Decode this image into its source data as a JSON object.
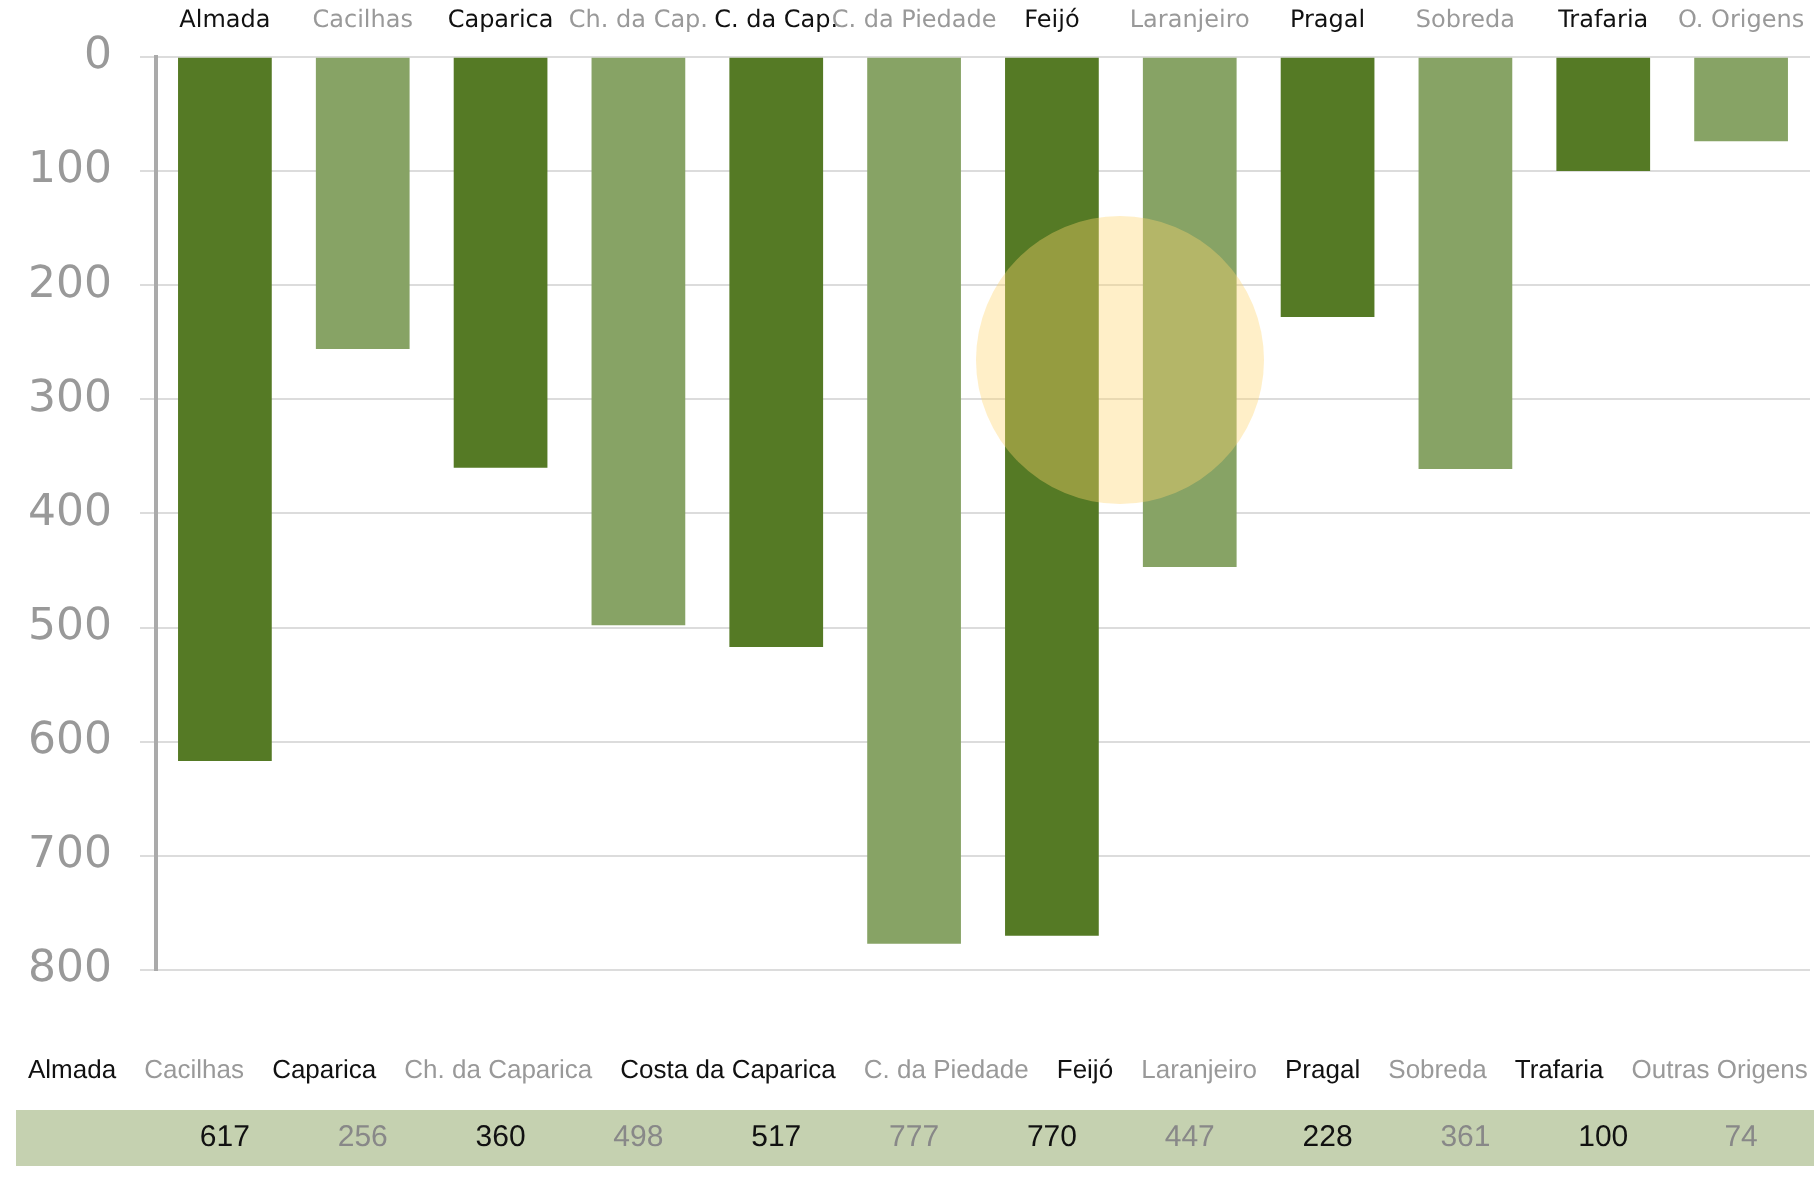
{
  "chart_data": {
    "type": "bar",
    "categories": [
      "Almada",
      "Cacilhas",
      "Caparica",
      "Ch. da Cap.",
      "C. da Cap.",
      "C. da Piedade",
      "Feijó",
      "Laranjeiro",
      "Pragal",
      "Sobreda",
      "Trafaria",
      "O. Origens"
    ],
    "values": [
      617,
      256,
      360,
      498,
      517,
      777,
      770,
      447,
      228,
      361,
      100,
      74
    ],
    "colors": [
      "#557a25",
      "#87a365",
      "#557a25",
      "#87a365",
      "#557a25",
      "#87a365",
      "#557a25",
      "#87a365",
      "#557a25",
      "#87a365",
      "#557a25",
      "#87a365"
    ],
    "ylim": [
      800,
      0
    ],
    "yticks": [
      0,
      100,
      200,
      300,
      400,
      500,
      600,
      700,
      800
    ],
    "grid": "y",
    "legend": false,
    "data_labels": true,
    "annotations": [
      "Almada",
      "Cacilhas",
      "Caparica",
      "Ch. da Caparica",
      "Costa da Caparica",
      "C. da Piedade",
      "Feijó",
      "Laranjeiro",
      "Pragal",
      "Sobreda",
      "Trafaria",
      "Outras Origens"
    ]
  }
}
